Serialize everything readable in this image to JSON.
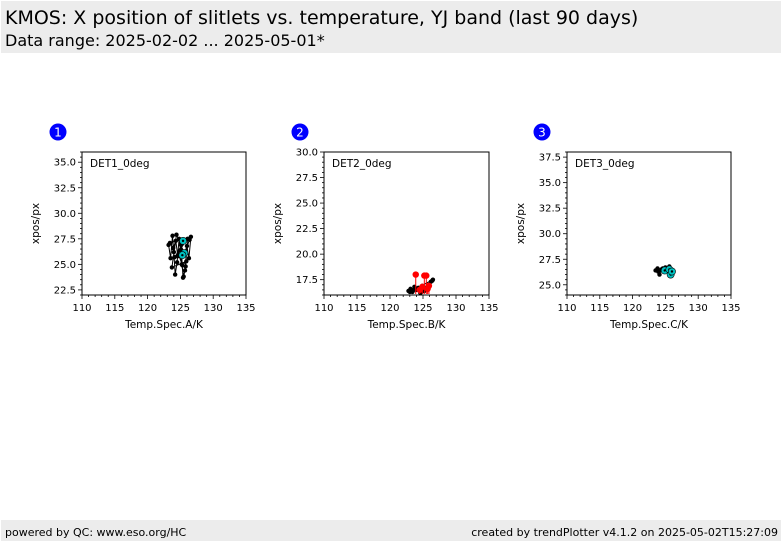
{
  "header": {
    "title": "KMOS: X position of slitlets vs. temperature, YJ band (last 90 days)",
    "subtitle": "Data range: 2025-02-02 ... 2025-05-01*"
  },
  "footer": {
    "left": "powered by QC: www.eso.org/HC",
    "right": "created by trendPlotter v4.1.2 on 2025-05-02T15:27:09"
  },
  "colors": {
    "badge": "#0000ff",
    "points": "#000000",
    "highlight_cyan": "#00c0c0",
    "highlight_red": "#ff0000"
  },
  "chart_data": [
    {
      "badge": "1",
      "type": "scatter",
      "label": "DET1_0deg",
      "xlabel": "Temp.Spec.A/K",
      "ylabel": "xpos/px",
      "xlim": [
        110,
        135
      ],
      "ylim": [
        22,
        36
      ],
      "xticks": [
        "110",
        "115",
        "120",
        "125",
        "130",
        "135"
      ],
      "yticks": [
        "22.5",
        "25.0",
        "27.5",
        "30.0",
        "32.5",
        "35.0"
      ],
      "series": [
        {
          "role": "history",
          "color": "#000000",
          "x": [
            123.2,
            123.5,
            123.8,
            124.0,
            124.2,
            124.5,
            124.8,
            125.0,
            125.2,
            125.5,
            125.8,
            126.0,
            126.3,
            126.6,
            123.4,
            123.9,
            124.3,
            124.6,
            125.1,
            125.4,
            125.7,
            126.1,
            124.1,
            124.7,
            125.3,
            125.9,
            123.7,
            124.4,
            125.6,
            126.4
          ],
          "y": [
            26.9,
            25.6,
            27.8,
            26.2,
            24.0,
            25.2,
            27.5,
            26.4,
            25.0,
            23.8,
            24.8,
            26.8,
            25.6,
            27.7,
            27.1,
            26.6,
            27.3,
            25.8,
            26.9,
            23.7,
            24.4,
            27.5,
            25.7,
            26.0,
            24.9,
            25.3,
            24.7,
            27.9,
            26.1,
            27.4
          ],
          "connected": true
        },
        {
          "role": "recent",
          "color": "#00c0c0",
          "x": [
            125.4,
            125.6,
            125.3
          ],
          "y": [
            27.3,
            26.1,
            25.9
          ],
          "connected": false
        }
      ]
    },
    {
      "badge": "2",
      "type": "scatter",
      "label": "DET2_0deg",
      "xlabel": "Temp.Spec.B/K",
      "ylabel": "xpos/px",
      "xlim": [
        110,
        135
      ],
      "ylim": [
        16,
        30
      ],
      "xticks": [
        "110",
        "115",
        "120",
        "125",
        "130",
        "135"
      ],
      "yticks": [
        "17.5",
        "20.0",
        "22.5",
        "25.0",
        "27.5",
        "30.0"
      ],
      "series": [
        {
          "role": "history",
          "color": "#000000",
          "x": [
            122.8,
            123.1,
            123.4,
            123.7,
            124.0,
            124.3,
            124.6,
            124.9,
            125.2,
            125.5,
            125.8,
            126.2,
            126.5,
            123.0,
            123.6,
            124.2,
            124.8,
            125.4,
            126.0,
            126.4
          ],
          "y": [
            16.4,
            16.6,
            16.3,
            16.8,
            16.5,
            16.7,
            16.2,
            16.9,
            16.4,
            16.6,
            16.8,
            17.3,
            17.5,
            16.3,
            16.5,
            16.6,
            16.3,
            16.7,
            16.9,
            17.4
          ],
          "connected": true
        },
        {
          "role": "recent",
          "color": "#ff0000",
          "x": [
            123.9,
            124.5,
            124.9,
            125.2,
            125.5,
            125.7,
            125.9
          ],
          "y": [
            18.0,
            16.5,
            16.8,
            17.9,
            17.9,
            16.6,
            16.9
          ],
          "connected": false
        }
      ]
    },
    {
      "badge": "3",
      "type": "scatter",
      "label": "DET3_0deg",
      "xlabel": "Temp.Spec.C/K",
      "ylabel": "xpos/px",
      "xlim": [
        110,
        135
      ],
      "ylim": [
        24,
        38
      ],
      "xticks": [
        "110",
        "115",
        "120",
        "125",
        "130",
        "135"
      ],
      "yticks": [
        "25.0",
        "27.5",
        "30.0",
        "32.5",
        "35.0",
        "37.5"
      ],
      "series": [
        {
          "role": "history",
          "color": "#000000",
          "x": [
            123.5,
            123.8,
            124.1,
            124.4,
            124.7,
            125.0,
            125.3,
            125.6,
            125.9,
            126.1,
            123.9,
            124.6
          ],
          "y": [
            26.4,
            26.6,
            26.0,
            26.5,
            26.3,
            26.7,
            26.4,
            26.8,
            26.5,
            26.2,
            26.3,
            26.6
          ],
          "connected": true
        },
        {
          "role": "recent",
          "color": "#00c0c0",
          "x": [
            124.9,
            125.6,
            125.8,
            126.0
          ],
          "y": [
            26.4,
            26.5,
            26.0,
            26.3
          ],
          "connected": false
        }
      ]
    }
  ]
}
